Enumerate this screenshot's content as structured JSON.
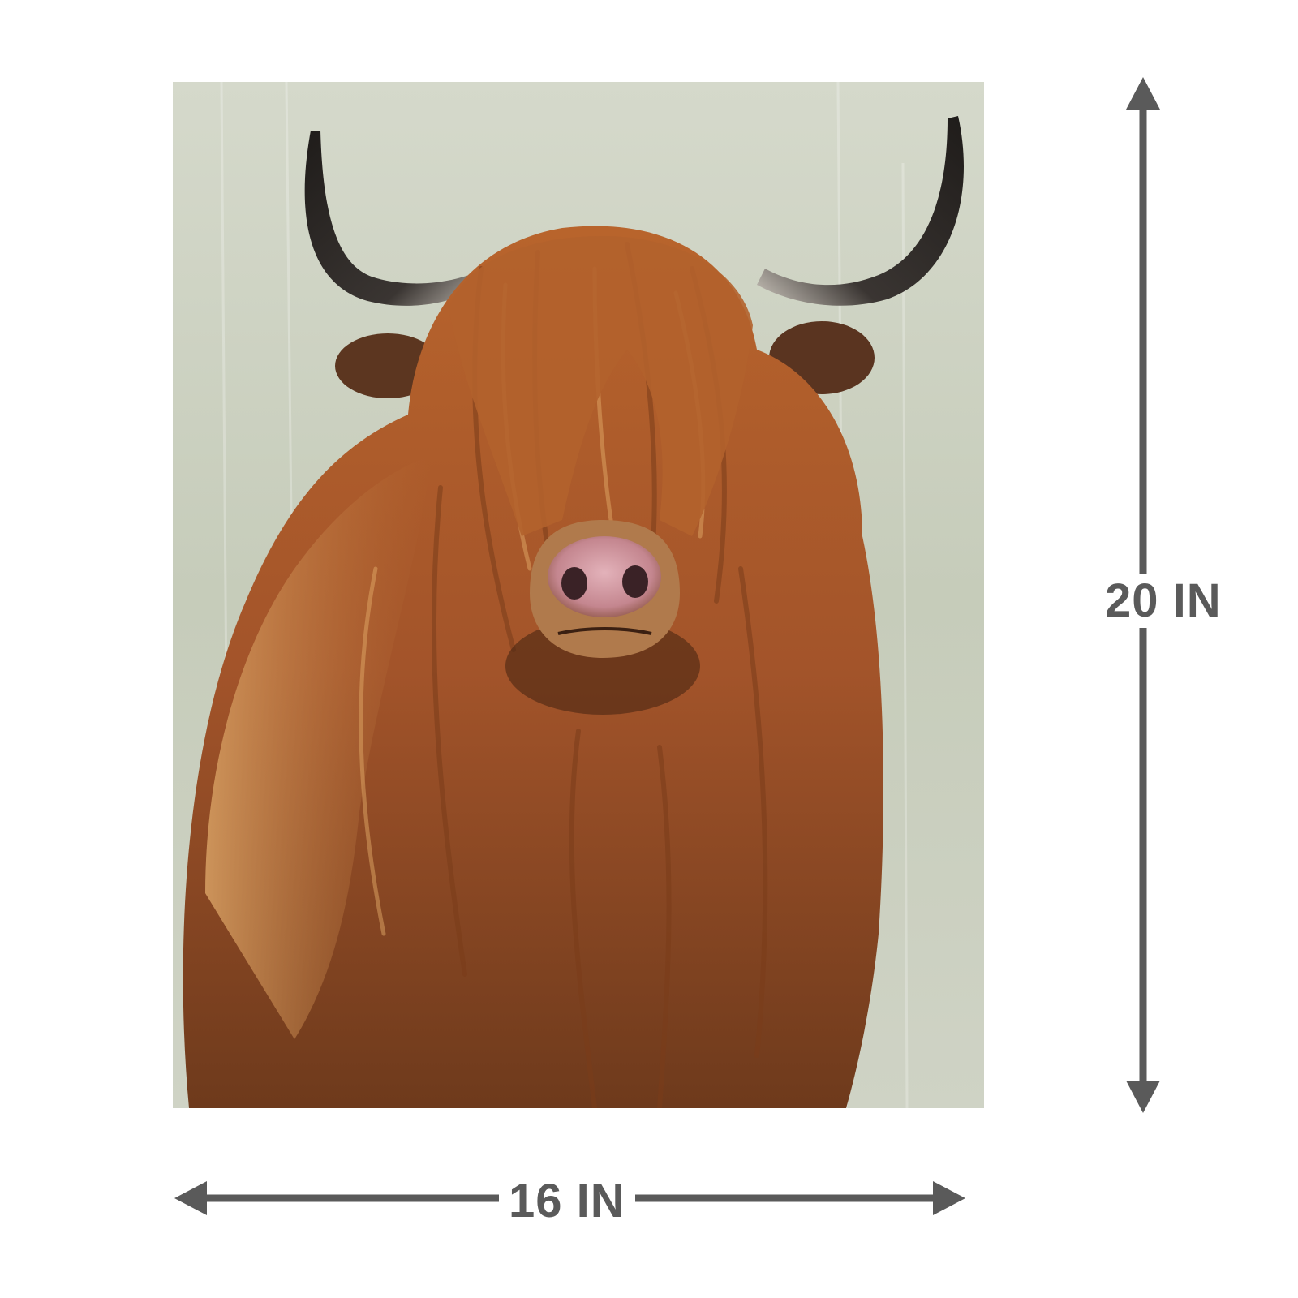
{
  "dimensions": {
    "height_label": "20 IN",
    "width_label": "16 IN",
    "color": "#5a5a5a"
  },
  "artwork": {
    "background_color": "#c6cbba",
    "fur_color": "#a8592a",
    "horn_color": "#2e2b29",
    "nose_color": "#c9919a"
  }
}
